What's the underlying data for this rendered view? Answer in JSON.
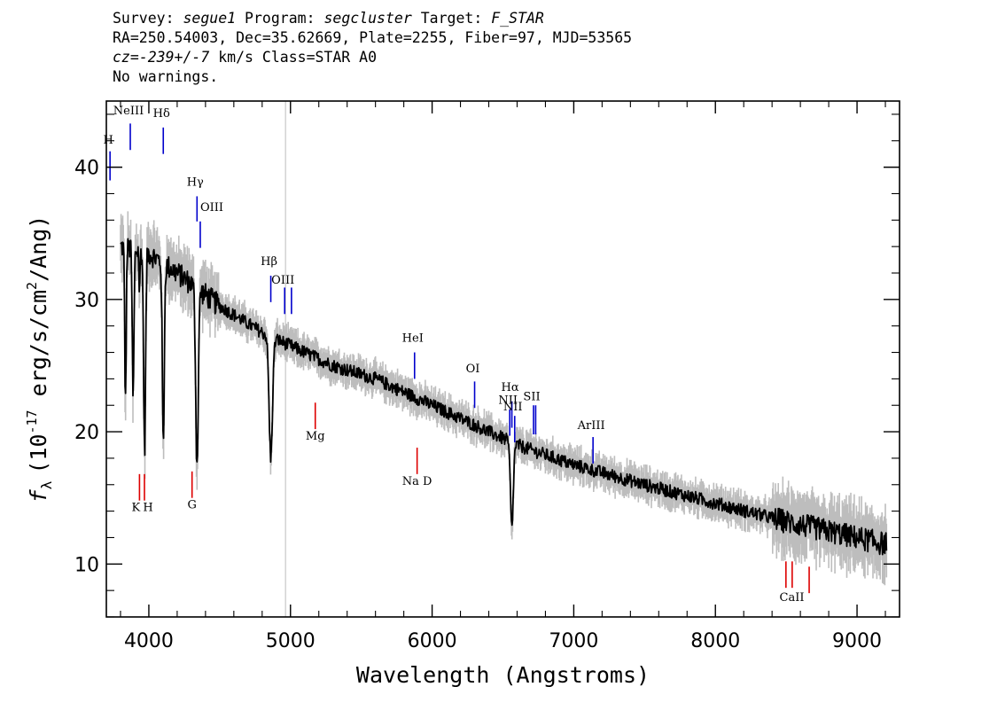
{
  "header": {
    "survey_label": "Survey:",
    "survey": "segue1",
    "program_label": "Program:",
    "program": "segcluster",
    "target_label": "Target:",
    "target": "F_STAR",
    "line2": "RA=250.54003, Dec=35.62669, Plate=2255, Fiber=97, MJD=53565",
    "cz_label": "cz=",
    "cz_value": "-239+/-7",
    "cz_suffix": " km/s Class=STAR A0",
    "warnings": "No warnings."
  },
  "chart_data": {
    "type": "line",
    "xlabel": "Wavelength (Angstroms)",
    "ylabel_prefix": "f",
    "ylabel_sub": "λ",
    "ylabel_main": "(10",
    "ylabel_exp": "-17",
    "ylabel_mid": " erg/s/cm",
    "ylabel_exp2": "2",
    "ylabel_end": "/Ang)",
    "xlim": [
      3700,
      9300
    ],
    "ylim": [
      6,
      45
    ],
    "x_ticks": [
      4000,
      5000,
      6000,
      7000,
      8000,
      9000
    ],
    "x_tick_labels": [
      "4000",
      "5000",
      "6000",
      "7000",
      "8000",
      "9000"
    ],
    "y_ticks": [
      10,
      20,
      30,
      40
    ],
    "y_tick_labels": [
      "10",
      "20",
      "30",
      "40"
    ],
    "vertical_marker_x": 4965,
    "colors": {
      "spectrum": "#000000",
      "error": "#bdbdbd",
      "emission": "#0000cc",
      "absorption": "#dd0000",
      "marker": "#c8c8c8"
    },
    "continuum": [
      [
        3800,
        34
      ],
      [
        4000,
        33.5
      ],
      [
        4200,
        32
      ],
      [
        4500,
        29.5
      ],
      [
        4800,
        27.5
      ],
      [
        5000,
        26.5
      ],
      [
        5300,
        25
      ],
      [
        5600,
        24
      ],
      [
        6000,
        22
      ],
      [
        6300,
        20.5
      ],
      [
        6600,
        19
      ],
      [
        7000,
        17.5
      ],
      [
        7500,
        16
      ],
      [
        8000,
        14.6
      ],
      [
        8500,
        13.2
      ],
      [
        9000,
        12
      ],
      [
        9200,
        11.5
      ]
    ],
    "absorption_features": [
      [
        3835,
        22,
        5
      ],
      [
        3889,
        22.5,
        6
      ],
      [
        3934,
        30,
        3
      ],
      [
        3970,
        18.5,
        7
      ],
      [
        4102,
        19,
        7
      ],
      [
        4340,
        17.5,
        9
      ],
      [
        4861,
        18,
        12
      ],
      [
        6563,
        12.7,
        10
      ]
    ],
    "emission_lines": [
      {
        "label": "H",
        "x": 3726,
        "y_top": 41.2,
        "y_bot": 39.0,
        "label_y": 41.8
      },
      {
        "label": "NeIII",
        "x": 3869,
        "y_top": 43.3,
        "y_bot": 41.3,
        "label_y": 44.0
      },
      {
        "label": "Hδ",
        "x": 4102,
        "y_top": 43.0,
        "y_bot": 41.0,
        "label_y": 43.8
      },
      {
        "label": "Hγ",
        "x": 4340,
        "y_top": 37.8,
        "y_bot": 35.9,
        "label_y": 38.6
      },
      {
        "label": "OIII",
        "x": 4363,
        "y_top": 35.9,
        "y_bot": 33.9,
        "label_y": 36.7
      },
      {
        "label": "Hβ",
        "x": 4861,
        "y_top": 31.8,
        "y_bot": 29.8,
        "label_y": 32.6
      },
      {
        "label": "OIII",
        "x": 4959,
        "y_top": 30.9,
        "y_bot": 28.9,
        "label_y": 31.2
      },
      {
        "label": "",
        "x": 5007,
        "y_top": 30.9,
        "y_bot": 28.9,
        "label_y": 31.2
      },
      {
        "label": "HeI",
        "x": 5876,
        "y_top": 26.0,
        "y_bot": 24.0,
        "label_y": 26.8
      },
      {
        "label": "OI",
        "x": 6300,
        "y_top": 23.8,
        "y_bot": 21.8,
        "label_y": 24.5
      },
      {
        "label": "NII",
        "x": 6548,
        "y_top": 21.7,
        "y_bot": 19.7,
        "label_y": 22.1
      },
      {
        "label": "Hα",
        "x": 6563,
        "y_top": 22.3,
        "y_bot": 20.3,
        "label_y": 23.1
      },
      {
        "label": "NII",
        "x": 6583,
        "y_top": 21.2,
        "y_bot": 19.2,
        "label_y": 21.6
      },
      {
        "label": "SII",
        "x": 6716,
        "y_top": 22.0,
        "y_bot": 19.8,
        "label_y": 22.4
      },
      {
        "label": "",
        "x": 6731,
        "y_top": 22.0,
        "y_bot": 19.8,
        "label_y": 22.4
      },
      {
        "label": "ArIII",
        "x": 7136,
        "y_top": 19.6,
        "y_bot": 17.6,
        "label_y": 20.2
      }
    ],
    "absorption_lines": [
      {
        "label": "K",
        "x": 3934,
        "y_top": 16.8,
        "y_bot": 14.8,
        "label_y": 14.0
      },
      {
        "label": "H",
        "x": 3969,
        "y_top": 16.8,
        "y_bot": 14.8,
        "label_y": 14.0
      },
      {
        "label": "G",
        "x": 4305,
        "y_top": 17.0,
        "y_bot": 15.0,
        "label_y": 14.2
      },
      {
        "label": "Mg",
        "x": 5175,
        "y_top": 22.2,
        "y_bot": 20.2,
        "label_y": 19.4
      },
      {
        "label": "Na D",
        "x": 5894,
        "y_top": 18.8,
        "y_bot": 16.8,
        "label_y": 16.0
      },
      {
        "label": "CaII",
        "x": 8498,
        "y_top": 10.2,
        "y_bot": 8.2,
        "label_y": 7.2
      },
      {
        "label": "",
        "x": 8542,
        "y_top": 10.2,
        "y_bot": 8.2,
        "label_y": 7.2
      },
      {
        "label": "",
        "x": 8662,
        "y_top": 9.8,
        "y_bot": 7.8,
        "label_y": 7.2
      }
    ]
  }
}
